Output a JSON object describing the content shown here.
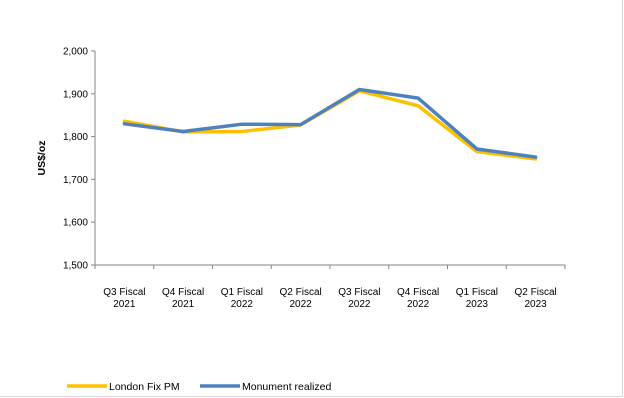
{
  "chart_data": {
    "type": "line",
    "title": "",
    "xlabel": "",
    "ylabel": "US$/oz",
    "ylim": [
      1500,
      2000
    ],
    "yticks": [
      "1,500",
      "1,600",
      "1,700",
      "1,800",
      "1,900",
      "2,000"
    ],
    "yticks_values": [
      1500,
      1600,
      1700,
      1800,
      1900,
      2000
    ],
    "categories": [
      [
        "Q3 Fiscal",
        "2021"
      ],
      [
        "Q4 Fiscal",
        "2021"
      ],
      [
        "Q1 Fiscal",
        "2022"
      ],
      [
        "Q2 Fiscal",
        "2022"
      ],
      [
        "Q3 Fiscal",
        "2022"
      ],
      [
        "Q4 Fiscal",
        "2022"
      ],
      [
        "Q1 Fiscal",
        "2023"
      ],
      [
        "Q2 Fiscal",
        "2023"
      ]
    ],
    "series": [
      {
        "name": "London Fix PM",
        "color": "#ffc000",
        "values": [
          1836,
          1811,
          1812,
          1827,
          1907,
          1872,
          1765,
          1748
        ]
      },
      {
        "name": "Monument realized",
        "color": "#4f81bd",
        "values": [
          1830,
          1812,
          1829,
          1828,
          1910,
          1890,
          1771,
          1752
        ]
      }
    ],
    "grid": false,
    "legend_position": "bottom-left"
  }
}
